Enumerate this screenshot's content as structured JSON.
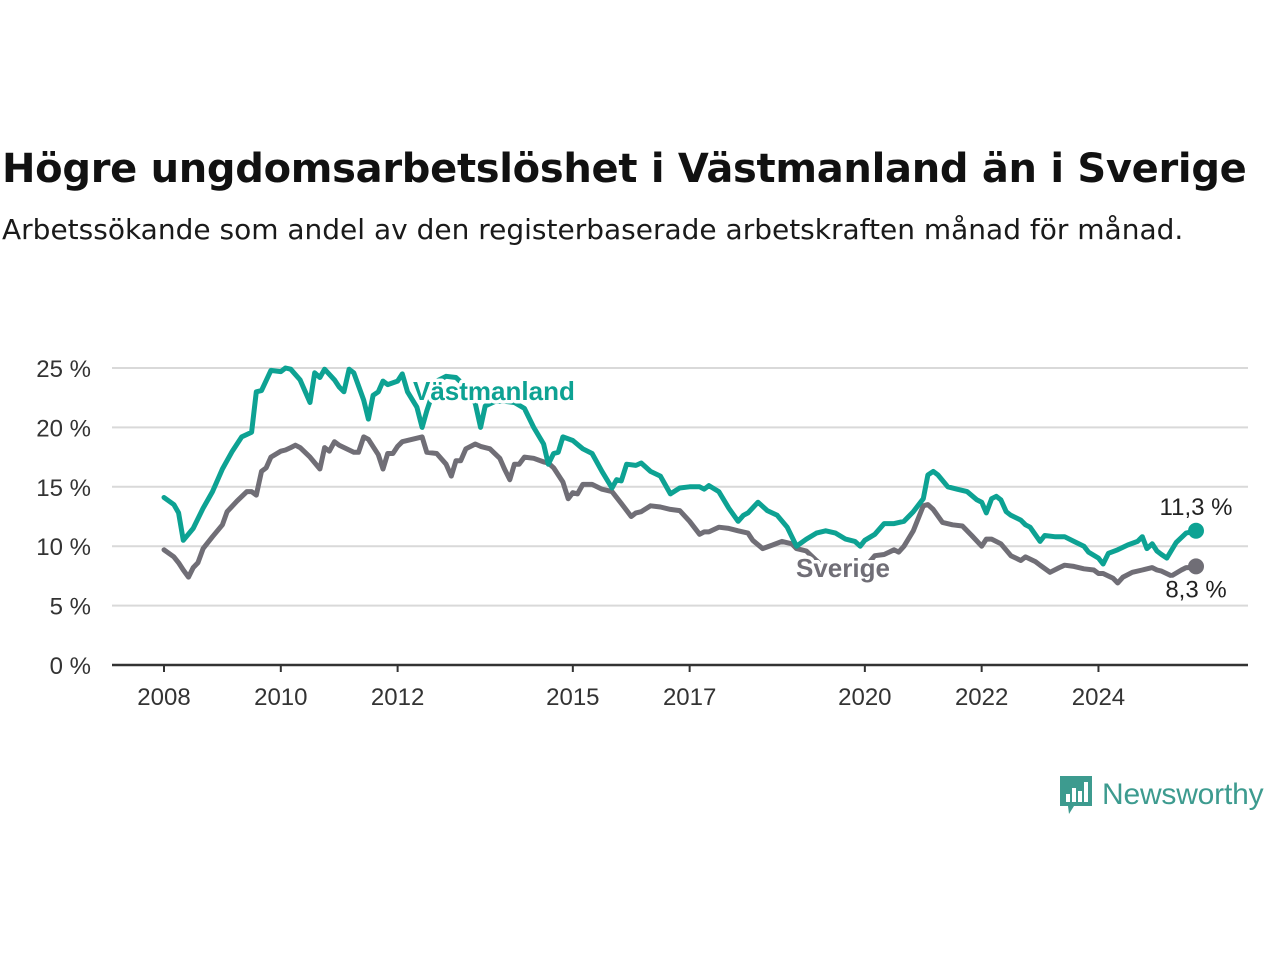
{
  "title": "Högre ungdomsarbetslöshet i Västmanland än i Sverige",
  "subtitle": "Arbetssökande som andel av den registerbaserade arbetskraften månad för månad.",
  "brand": {
    "name": "Newsworthy",
    "color": "#3d9b8f",
    "icon": "newsworthy-bar-chart-logo-icon"
  },
  "chart_data": {
    "type": "line",
    "x_unit": "year",
    "xlim": [
      2007.6,
      2025.85
    ],
    "ylim": [
      0,
      25
    ],
    "y_ticks": [
      0,
      5,
      10,
      15,
      20,
      25
    ],
    "y_tick_labels": [
      "0 %",
      "5 %",
      "10 %",
      "15 %",
      "20 %",
      "25 %"
    ],
    "x_ticks": [
      2008,
      2010,
      2012,
      2015,
      2017,
      2020,
      2022,
      2024
    ],
    "x_tick_labels": [
      "2008",
      "2010",
      "2012",
      "2015",
      "2017",
      "2020",
      "2022",
      "2024"
    ],
    "grid": true,
    "series": [
      {
        "name": "Västmanland",
        "color": "#0da293",
        "end_label": "11,3 %",
        "points": [
          [
            2008.0,
            14.1
          ],
          [
            2008.17,
            13.5
          ],
          [
            2008.25,
            12.8
          ],
          [
            2008.33,
            10.5
          ],
          [
            2008.5,
            11.5
          ],
          [
            2008.67,
            13.2
          ],
          [
            2008.83,
            14.6
          ],
          [
            2009.0,
            16.5
          ],
          [
            2009.17,
            18.0
          ],
          [
            2009.33,
            19.2
          ],
          [
            2009.5,
            19.6
          ],
          [
            2009.58,
            23.0
          ],
          [
            2009.67,
            23.1
          ],
          [
            2009.83,
            24.8
          ],
          [
            2010.0,
            24.7
          ],
          [
            2010.08,
            25.0
          ],
          [
            2010.17,
            24.9
          ],
          [
            2010.33,
            24.0
          ],
          [
            2010.5,
            22.1
          ],
          [
            2010.58,
            24.6
          ],
          [
            2010.67,
            24.2
          ],
          [
            2010.75,
            24.9
          ],
          [
            2010.92,
            24.0
          ],
          [
            2011.0,
            23.4
          ],
          [
            2011.08,
            23.0
          ],
          [
            2011.17,
            24.9
          ],
          [
            2011.25,
            24.6
          ],
          [
            2011.42,
            22.3
          ],
          [
            2011.5,
            20.7
          ],
          [
            2011.58,
            22.7
          ],
          [
            2011.67,
            23.0
          ],
          [
            2011.75,
            23.9
          ],
          [
            2011.83,
            23.6
          ],
          [
            2012.0,
            23.9
          ],
          [
            2012.08,
            24.5
          ],
          [
            2012.17,
            23.0
          ],
          [
            2012.33,
            21.7
          ],
          [
            2012.42,
            20.0
          ],
          [
            2012.5,
            21.4
          ],
          [
            2012.67,
            23.9
          ],
          [
            2012.83,
            24.3
          ],
          [
            2013.0,
            24.2
          ],
          [
            2013.17,
            23.4
          ],
          [
            2013.33,
            22.0
          ],
          [
            2013.42,
            20.0
          ],
          [
            2013.5,
            21.8
          ],
          [
            2013.67,
            22.2
          ],
          [
            2013.83,
            22.2
          ],
          [
            2014.0,
            22.1
          ],
          [
            2014.17,
            21.6
          ],
          [
            2014.33,
            20.0
          ],
          [
            2014.5,
            18.6
          ],
          [
            2014.58,
            16.9
          ],
          [
            2014.67,
            17.8
          ],
          [
            2014.75,
            17.9
          ],
          [
            2014.83,
            19.2
          ],
          [
            2015.0,
            18.9
          ],
          [
            2015.17,
            18.2
          ],
          [
            2015.33,
            17.8
          ],
          [
            2015.5,
            16.3
          ],
          [
            2015.67,
            14.9
          ],
          [
            2015.75,
            15.6
          ],
          [
            2015.83,
            15.5
          ],
          [
            2015.92,
            16.9
          ],
          [
            2016.08,
            16.8
          ],
          [
            2016.17,
            17.0
          ],
          [
            2016.33,
            16.3
          ],
          [
            2016.5,
            15.9
          ],
          [
            2016.67,
            14.4
          ],
          [
            2016.83,
            14.9
          ],
          [
            2017.0,
            15.0
          ],
          [
            2017.17,
            15.0
          ],
          [
            2017.25,
            14.8
          ],
          [
            2017.33,
            15.1
          ],
          [
            2017.5,
            14.6
          ],
          [
            2017.67,
            13.2
          ],
          [
            2017.83,
            12.1
          ],
          [
            2017.92,
            12.6
          ],
          [
            2018.0,
            12.8
          ],
          [
            2018.17,
            13.7
          ],
          [
            2018.33,
            13.0
          ],
          [
            2018.5,
            12.6
          ],
          [
            2018.67,
            11.6
          ],
          [
            2018.83,
            10.0
          ],
          [
            2019.0,
            10.6
          ],
          [
            2019.17,
            11.1
          ],
          [
            2019.33,
            11.3
          ],
          [
            2019.5,
            11.1
          ],
          [
            2019.67,
            10.6
          ],
          [
            2019.83,
            10.4
          ],
          [
            2019.92,
            10.0
          ],
          [
            2020.0,
            10.5
          ],
          [
            2020.17,
            11.0
          ],
          [
            2020.33,
            11.9
          ],
          [
            2020.5,
            11.9
          ],
          [
            2020.67,
            12.1
          ],
          [
            2020.83,
            12.9
          ],
          [
            2021.0,
            14.0
          ],
          [
            2021.08,
            16.0
          ],
          [
            2021.17,
            16.3
          ],
          [
            2021.25,
            16.0
          ],
          [
            2021.42,
            15.0
          ],
          [
            2021.58,
            14.8
          ],
          [
            2021.75,
            14.6
          ],
          [
            2021.92,
            13.9
          ],
          [
            2022.0,
            13.7
          ],
          [
            2022.08,
            12.8
          ],
          [
            2022.17,
            14.0
          ],
          [
            2022.25,
            14.2
          ],
          [
            2022.33,
            13.9
          ],
          [
            2022.42,
            12.9
          ],
          [
            2022.5,
            12.6
          ],
          [
            2022.67,
            12.2
          ],
          [
            2022.75,
            11.8
          ],
          [
            2022.83,
            11.6
          ],
          [
            2023.0,
            10.4
          ],
          [
            2023.08,
            10.9
          ],
          [
            2023.25,
            10.8
          ],
          [
            2023.42,
            10.8
          ],
          [
            2023.58,
            10.4
          ],
          [
            2023.75,
            10.0
          ],
          [
            2023.83,
            9.5
          ],
          [
            2024.0,
            9.0
          ],
          [
            2024.08,
            8.5
          ],
          [
            2024.17,
            9.4
          ],
          [
            2024.33,
            9.7
          ],
          [
            2024.5,
            10.1
          ],
          [
            2024.67,
            10.4
          ],
          [
            2024.75,
            10.8
          ],
          [
            2024.83,
            9.8
          ],
          [
            2024.92,
            10.2
          ],
          [
            2025.0,
            9.6
          ],
          [
            2025.08,
            9.3
          ],
          [
            2025.17,
            9.0
          ],
          [
            2025.33,
            10.3
          ],
          [
            2025.5,
            11.1
          ],
          [
            2025.67,
            11.3
          ]
        ]
      },
      {
        "name": "Sverige",
        "color": "#706e76",
        "end_label": "8,3 %",
        "points": [
          [
            2008.0,
            9.7
          ],
          [
            2008.17,
            9.1
          ],
          [
            2008.25,
            8.6
          ],
          [
            2008.33,
            8.0
          ],
          [
            2008.42,
            7.4
          ],
          [
            2008.5,
            8.2
          ],
          [
            2008.58,
            8.6
          ],
          [
            2008.67,
            9.8
          ],
          [
            2008.83,
            10.8
          ],
          [
            2009.0,
            11.8
          ],
          [
            2009.08,
            12.9
          ],
          [
            2009.25,
            13.8
          ],
          [
            2009.42,
            14.6
          ],
          [
            2009.5,
            14.6
          ],
          [
            2009.58,
            14.3
          ],
          [
            2009.67,
            16.3
          ],
          [
            2009.75,
            16.6
          ],
          [
            2009.83,
            17.5
          ],
          [
            2010.0,
            18.0
          ],
          [
            2010.08,
            18.1
          ],
          [
            2010.17,
            18.3
          ],
          [
            2010.25,
            18.5
          ],
          [
            2010.33,
            18.3
          ],
          [
            2010.5,
            17.5
          ],
          [
            2010.67,
            16.5
          ],
          [
            2010.75,
            18.3
          ],
          [
            2010.83,
            18.0
          ],
          [
            2010.92,
            18.8
          ],
          [
            2011.0,
            18.5
          ],
          [
            2011.17,
            18.1
          ],
          [
            2011.25,
            17.9
          ],
          [
            2011.33,
            17.9
          ],
          [
            2011.42,
            19.2
          ],
          [
            2011.5,
            19.0
          ],
          [
            2011.67,
            17.7
          ],
          [
            2011.75,
            16.5
          ],
          [
            2011.83,
            17.8
          ],
          [
            2011.92,
            17.8
          ],
          [
            2012.0,
            18.4
          ],
          [
            2012.08,
            18.8
          ],
          [
            2012.25,
            19.0
          ],
          [
            2012.42,
            19.2
          ],
          [
            2012.5,
            17.9
          ],
          [
            2012.67,
            17.8
          ],
          [
            2012.83,
            16.9
          ],
          [
            2012.92,
            15.9
          ],
          [
            2013.0,
            17.2
          ],
          [
            2013.08,
            17.2
          ],
          [
            2013.17,
            18.2
          ],
          [
            2013.33,
            18.6
          ],
          [
            2013.42,
            18.4
          ],
          [
            2013.58,
            18.2
          ],
          [
            2013.75,
            17.4
          ],
          [
            2013.83,
            16.5
          ],
          [
            2013.92,
            15.6
          ],
          [
            2014.0,
            16.9
          ],
          [
            2014.08,
            16.9
          ],
          [
            2014.17,
            17.5
          ],
          [
            2014.33,
            17.4
          ],
          [
            2014.5,
            17.1
          ],
          [
            2014.58,
            17.0
          ],
          [
            2014.67,
            16.6
          ],
          [
            2014.83,
            15.4
          ],
          [
            2014.92,
            14.0
          ],
          [
            2015.0,
            14.5
          ],
          [
            2015.08,
            14.4
          ],
          [
            2015.17,
            15.2
          ],
          [
            2015.33,
            15.2
          ],
          [
            2015.5,
            14.8
          ],
          [
            2015.67,
            14.6
          ],
          [
            2015.83,
            13.6
          ],
          [
            2016.0,
            12.5
          ],
          [
            2016.08,
            12.8
          ],
          [
            2016.17,
            12.9
          ],
          [
            2016.33,
            13.4
          ],
          [
            2016.5,
            13.3
          ],
          [
            2016.67,
            13.1
          ],
          [
            2016.83,
            13.0
          ],
          [
            2017.0,
            12.1
          ],
          [
            2017.17,
            11.0
          ],
          [
            2017.25,
            11.2
          ],
          [
            2017.33,
            11.2
          ],
          [
            2017.5,
            11.6
          ],
          [
            2017.67,
            11.5
          ],
          [
            2017.83,
            11.3
          ],
          [
            2018.0,
            11.1
          ],
          [
            2018.08,
            10.5
          ],
          [
            2018.25,
            9.8
          ],
          [
            2018.42,
            10.1
          ],
          [
            2018.58,
            10.4
          ],
          [
            2018.75,
            10.2
          ],
          [
            2018.83,
            9.8
          ],
          [
            2019.0,
            9.6
          ],
          [
            2019.17,
            8.8
          ],
          [
            2019.33,
            8.1
          ],
          [
            2019.5,
            8.0
          ],
          [
            2019.67,
            8.0
          ],
          [
            2019.83,
            8.6
          ],
          [
            2020.0,
            8.2
          ],
          [
            2020.17,
            9.2
          ],
          [
            2020.33,
            9.3
          ],
          [
            2020.5,
            9.7
          ],
          [
            2020.58,
            9.5
          ],
          [
            2020.67,
            10.0
          ],
          [
            2020.83,
            11.3
          ],
          [
            2021.0,
            13.4
          ],
          [
            2021.08,
            13.5
          ],
          [
            2021.17,
            13.1
          ],
          [
            2021.33,
            12.0
          ],
          [
            2021.5,
            11.8
          ],
          [
            2021.67,
            11.7
          ],
          [
            2021.83,
            10.9
          ],
          [
            2022.0,
            10.0
          ],
          [
            2022.08,
            10.6
          ],
          [
            2022.17,
            10.6
          ],
          [
            2022.33,
            10.2
          ],
          [
            2022.5,
            9.2
          ],
          [
            2022.67,
            8.8
          ],
          [
            2022.75,
            9.1
          ],
          [
            2022.92,
            8.7
          ],
          [
            2023.0,
            8.4
          ],
          [
            2023.17,
            7.8
          ],
          [
            2023.33,
            8.2
          ],
          [
            2023.42,
            8.4
          ],
          [
            2023.58,
            8.3
          ],
          [
            2023.75,
            8.1
          ],
          [
            2023.92,
            8.0
          ],
          [
            2024.0,
            7.7
          ],
          [
            2024.08,
            7.7
          ],
          [
            2024.25,
            7.3
          ],
          [
            2024.33,
            6.9
          ],
          [
            2024.42,
            7.4
          ],
          [
            2024.58,
            7.8
          ],
          [
            2024.75,
            8.0
          ],
          [
            2024.92,
            8.2
          ],
          [
            2025.0,
            8.0
          ],
          [
            2025.08,
            7.9
          ],
          [
            2025.25,
            7.5
          ],
          [
            2025.42,
            8.0
          ],
          [
            2025.5,
            8.2
          ],
          [
            2025.58,
            8.2
          ],
          [
            2025.67,
            8.3
          ]
        ]
      }
    ]
  }
}
